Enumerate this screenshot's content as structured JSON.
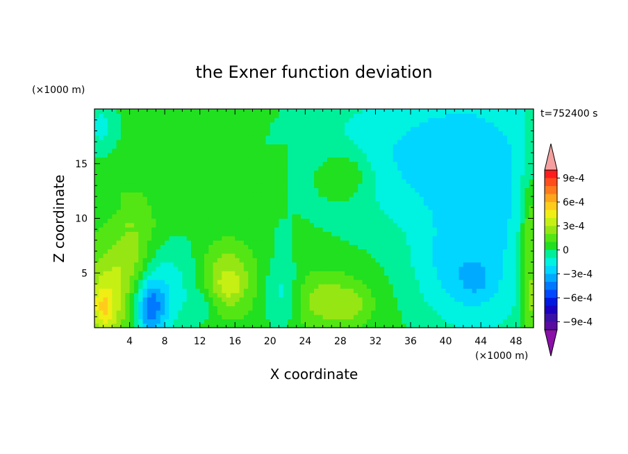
{
  "chart_data": {
    "type": "heatmap",
    "title": "the Exner function deviation",
    "xlabel": "X coordinate",
    "ylabel": "Z coordinate",
    "x_unit": "(×1000 m)",
    "y_unit": "(×1000 m)",
    "time_label": "t=752400 s",
    "xlim": [
      0,
      50
    ],
    "ylim": [
      0,
      20
    ],
    "x_ticks": [
      4,
      8,
      12,
      16,
      20,
      24,
      28,
      32,
      36,
      40,
      44,
      48
    ],
    "y_ticks": [
      5,
      10,
      15
    ],
    "colorbar": {
      "levels": [
        -0.0011,
        -0.001,
        -0.0009,
        -0.0008,
        -0.0007,
        -0.0006,
        -0.0005,
        -0.0004,
        -0.0003,
        -0.0002,
        -0.0001,
        0,
        0.0001,
        0.0002,
        0.0003,
        0.0004,
        0.0005,
        0.0006,
        0.0007,
        0.0008,
        0.0009,
        0.001,
        0.0011
      ],
      "tick_values": [
        0.0009,
        0.0006,
        0.0003,
        0,
        -0.0003,
        -0.0006,
        -0.0009
      ],
      "tick_labels": [
        "9e-4",
        "6e-4",
        "3e-4",
        "0",
        "−3e-4",
        "−6e-4",
        "−9e-4"
      ],
      "colors_top_to_bottom": [
        "#ff1c1c",
        "#ff4d1c",
        "#ff7a1c",
        "#ffa51c",
        "#ffcc1c",
        "#f0ee14",
        "#c6f014",
        "#96e614",
        "#54e614",
        "#20e020",
        "#00f09a",
        "#00f2e0",
        "#00d6ff",
        "#00aaff",
        "#0078ff",
        "#0048ff",
        "#0018e0",
        "#1a00c0",
        "#3a10a8",
        "#5a0ca0"
      ],
      "over_color": "#f4a0a0",
      "under_color": "#8a10a8"
    },
    "fields": {
      "background_level": 5e-05,
      "patches": [
        {
          "x": 0.8,
          "z": 18.4,
          "sx": 1.3,
          "sz": 1.8,
          "a": -0.00018
        },
        {
          "x": 1.5,
          "z": 2.5,
          "sx": 1.8,
          "sz": 3.5,
          "a": 0.0003
        },
        {
          "x": 1.0,
          "z": 2.0,
          "sx": 0.8,
          "sz": 1.2,
          "a": 0.0002
        },
        {
          "x": 4.5,
          "z": 6.5,
          "sx": 1.5,
          "sz": 2.8,
          "a": 0.0002
        },
        {
          "x": 6.5,
          "z": 2.2,
          "sx": 1.6,
          "sz": 2.6,
          "a": -0.00035
        },
        {
          "x": 6.3,
          "z": 1.8,
          "sx": 0.9,
          "sz": 1.4,
          "a": -0.0002
        },
        {
          "x": 10.0,
          "z": 4.0,
          "sx": 2.0,
          "sz": 3.0,
          "a": -0.00016
        },
        {
          "x": 12.5,
          "z": 2.0,
          "sx": 1.0,
          "sz": 1.0,
          "a": -0.00012
        },
        {
          "x": 15.0,
          "z": 4.5,
          "sx": 2.3,
          "sz": 2.2,
          "a": 0.00026
        },
        {
          "x": 15.5,
          "z": 3.8,
          "sx": 0.8,
          "sz": 0.8,
          "a": 0.0001
        },
        {
          "x": 21.3,
          "z": 3.0,
          "sx": 1.5,
          "sz": 2.2,
          "a": -0.0002
        },
        {
          "x": 21.5,
          "z": 8.0,
          "sx": 0.6,
          "sz": 1.6,
          "a": -0.0001
        },
        {
          "x": 26.5,
          "z": 2.5,
          "sx": 3.0,
          "sz": 1.8,
          "a": 0.00022
        },
        {
          "x": 29.5,
          "z": 2.0,
          "sx": 1.5,
          "sz": 1.0,
          "a": 0.0001
        },
        {
          "x": 35.0,
          "z": 16.0,
          "sx": 9.0,
          "sz": 5.0,
          "a": -0.00022
        },
        {
          "x": 45.0,
          "z": 10.0,
          "sx": 6.0,
          "sz": 10.0,
          "a": -0.00022
        },
        {
          "x": 28.5,
          "z": 14.0,
          "sx": 2.2,
          "sz": 1.6,
          "a": 0.0002
        },
        {
          "x": 41.0,
          "z": 5.0,
          "sx": 3.5,
          "sz": 3.0,
          "a": -0.00014
        },
        {
          "x": 43.5,
          "z": 4.2,
          "sx": 1.4,
          "sz": 1.2,
          "a": -0.0001
        },
        {
          "x": 49.6,
          "z": 8.0,
          "sx": 0.8,
          "sz": 5.0,
          "a": 0.0003
        },
        {
          "x": 49.6,
          "z": 2.0,
          "sx": 0.6,
          "sz": 2.0,
          "a": 0.00015
        }
      ]
    },
    "grid": false
  }
}
